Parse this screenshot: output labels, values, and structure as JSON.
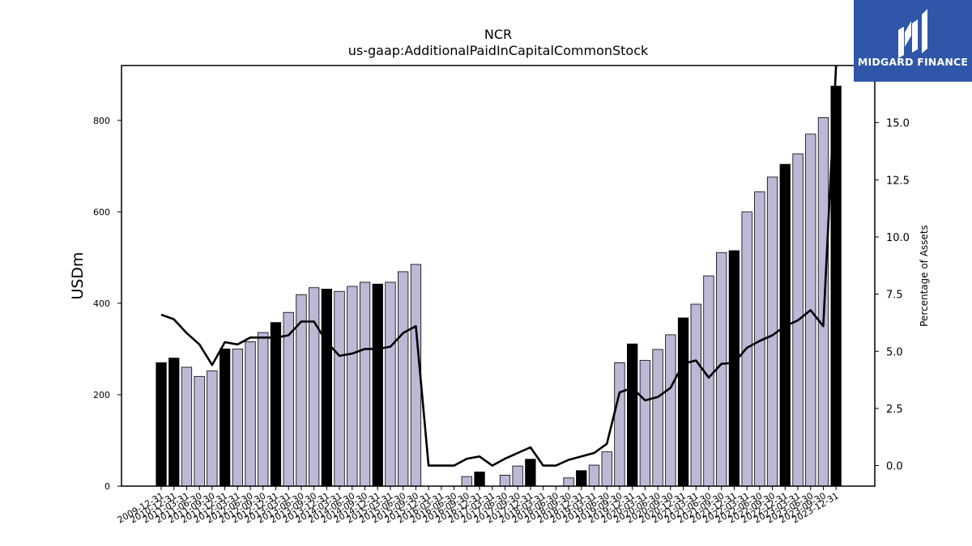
{
  "chart_data": {
    "type": "bar",
    "title": "NCR",
    "subtitle": "us-gaap:AdditionalPaidInCapitalCommonStock",
    "ylabel": "USDm",
    "y2label": "Percentage of Assets",
    "ylim": [
      0,
      920
    ],
    "y2lim": [
      -0.9,
      17.5
    ],
    "yticks": [
      "0",
      "200",
      "400",
      "600",
      "800"
    ],
    "y2ticks": [
      "0.0",
      "2.5",
      "5.0",
      "7.5",
      "10.0",
      "12.5",
      "15.0"
    ],
    "categories": [
      "2009-12-31",
      "2010-12-31",
      "2011-03-31",
      "2011-06-30",
      "2011-09-30",
      "2011-12-31",
      "2012-03-31",
      "2012-06-30",
      "2012-09-30",
      "2012-12-31",
      "2013-03-31",
      "2013-06-30",
      "2013-09-30",
      "2013-12-31",
      "2014-03-31",
      "2014-06-30",
      "2014-09-30",
      "2014-12-31",
      "2015-03-31",
      "2015-06-30",
      "2015-09-30",
      "2015-12-31",
      "2016-03-31",
      "2016-06-30",
      "2016-09-30",
      "2016-12-31",
      "2017-03-31",
      "2017-06-30",
      "2017-09-30",
      "2017-12-31",
      "2018-03-31",
      "2018-06-30",
      "2018-09-30",
      "2018-12-31",
      "2019-03-31",
      "2019-06-30",
      "2019-09-30",
      "2019-12-31",
      "2020-03-31",
      "2020-06-30",
      "2020-09-30",
      "2020-12-31",
      "2021-03-31",
      "2021-06-30",
      "2021-09-30",
      "2021-12-31",
      "2022-03-31",
      "2022-06-30",
      "2022-09-30",
      "2022-12-31",
      "2023-03-31",
      "2023-06-30",
      "2023-09-30",
      "2023-12-31"
    ],
    "series": [
      {
        "kind": "bar",
        "values": [
          270,
          280,
          260,
          240,
          252,
          300,
          300,
          316,
          336,
          358,
          380,
          419,
          434,
          431,
          426,
          437,
          446,
          442,
          446,
          469,
          485,
          0,
          0,
          0,
          21,
          31,
          0,
          24,
          44,
          59,
          0,
          0,
          18,
          34,
          46,
          75,
          270,
          311,
          275,
          299,
          331,
          368,
          398,
          460,
          511,
          515,
          600,
          644,
          676,
          704,
          727,
          770,
          806,
          875
        ],
        "fill_default": "#bcb8d6",
        "fill_highlight": "#000000",
        "highlight": [
          true,
          true,
          false,
          false,
          false,
          true,
          false,
          false,
          false,
          true,
          false,
          false,
          false,
          true,
          false,
          false,
          false,
          true,
          false,
          false,
          false,
          true,
          false,
          false,
          false,
          true,
          false,
          false,
          false,
          true,
          false,
          false,
          false,
          true,
          false,
          false,
          false,
          true,
          false,
          false,
          false,
          true,
          false,
          false,
          false,
          true,
          false,
          false,
          false,
          true,
          false,
          false,
          false,
          true
        ]
      },
      {
        "kind": "line",
        "axis": "y2",
        "color": "#000000",
        "values": [
          6.6,
          6.4,
          5.8,
          5.3,
          4.4,
          5.4,
          5.3,
          5.6,
          5.6,
          5.6,
          5.7,
          6.3,
          6.3,
          5.4,
          4.8,
          4.9,
          5.1,
          5.1,
          5.2,
          5.8,
          6.1,
          0.0,
          0.0,
          0.0,
          0.3,
          0.4,
          0.0,
          0.3,
          0.55,
          0.8,
          0.0,
          0.0,
          0.25,
          0.4,
          0.55,
          0.95,
          3.2,
          3.4,
          2.85,
          3.0,
          3.4,
          4.45,
          4.6,
          3.85,
          4.45,
          4.5,
          5.15,
          5.45,
          5.7,
          6.1,
          6.35,
          6.8,
          6.1,
          17.5
        ]
      }
    ],
    "grid": false,
    "legend": "none"
  },
  "logo": {
    "text": "MIDGARD FINANCE"
  }
}
